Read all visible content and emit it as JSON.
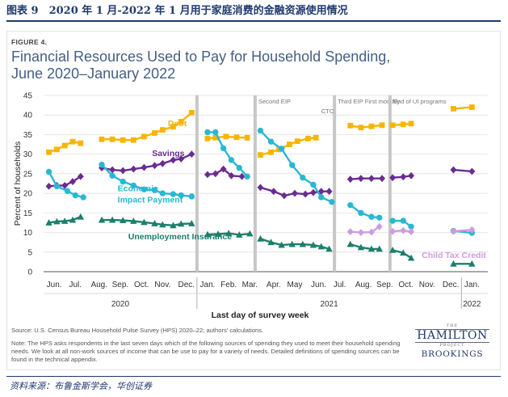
{
  "caption": "图表 9　2020 年 1 月-2022 年 1 月用于家庭消费的金融资源使用情况",
  "figure_label": "FIGURE 4.",
  "title_line1": "Financial Resources Used to Pay for Household Spending,",
  "title_line2": "June 2020–January 2022",
  "source_note": "Source: U.S. Census Bureau Household Pulse Survey (HPS) 2020–22; authors' calculations.",
  "note": "Note: The HPS asks respondents in the last seven days which of the following sources of spending they used to meet their household spending needs. We look at all non-work sources of income that can be use to pay for a variety of needs. Detailed definitions of spending sources can be found in the technical appendix.",
  "logo": {
    "the": "THE",
    "hamilton": "HAMILTON",
    "project": "PROJECT",
    "brookings": "BROOKINGS"
  },
  "footer": "资料来源：布鲁金斯学会，华创证券",
  "colors": {
    "debt": "#f7b500",
    "savings": "#6a2c91",
    "eip": "#2ab7d2",
    "ui": "#1b7f6b",
    "ctc": "#cf9be0",
    "divider": "#c7c7c7"
  },
  "chart_data": {
    "type": "line",
    "title": "Financial Resources Used to Pay for Household Spending, June 2020–January 2022",
    "xlabel": "Last day of survey week",
    "ylabel": "Percent of households",
    "ylim": [
      0,
      45
    ],
    "yticks": [
      0,
      5,
      10,
      15,
      20,
      25,
      30,
      35,
      40,
      45
    ],
    "xlim": [
      2020.42,
      2022.1
    ],
    "month_ticks": [
      {
        "label": "Jun.",
        "x": 2020.46
      },
      {
        "label": "Jul.",
        "x": 2020.54
      },
      {
        "label": "Aug.",
        "x": 2020.63
      },
      {
        "label": "Sep.",
        "x": 2020.71
      },
      {
        "label": "Oct.",
        "x": 2020.79
      },
      {
        "label": "Nov.",
        "x": 2020.87
      },
      {
        "label": "Dec.",
        "x": 2020.96
      },
      {
        "label": "Jan.",
        "x": 2021.04
      },
      {
        "label": "Feb.",
        "x": 2021.12
      },
      {
        "label": "Mar.",
        "x": 2021.2
      },
      {
        "label": "Apr.",
        "x": 2021.29
      },
      {
        "label": "May",
        "x": 2021.37
      },
      {
        "label": "Jun.",
        "x": 2021.46
      },
      {
        "label": "Jul.",
        "x": 2021.54
      },
      {
        "label": "Aug.",
        "x": 2021.63
      },
      {
        "label": "Sep.",
        "x": 2021.71
      },
      {
        "label": "Oct.",
        "x": 2021.79
      },
      {
        "label": "Nov.",
        "x": 2021.87
      },
      {
        "label": "Dec.",
        "x": 2021.96
      },
      {
        "label": "Jan.",
        "x": 2022.04
      }
    ],
    "years": [
      {
        "label": "2020",
        "x": 2020.71
      },
      {
        "label": "2021",
        "x": 2021.5
      },
      {
        "label": "2022",
        "x": 2022.04
      }
    ],
    "year_dividers": [
      2021.0,
      2022.0
    ],
    "gridlines": true,
    "phase_dividers": [
      {
        "x": 2021.0,
        "label": ""
      },
      {
        "x": 2021.22,
        "label": "Second EIP"
      },
      {
        "x": 2021.52,
        "label": "Third EIP   First monthly"
      },
      {
        "x": 2021.73,
        "label": "End of UI programs"
      }
    ],
    "extra_annotations": [
      {
        "text": "CTC",
        "x": 2021.47,
        "y": 40.5
      }
    ],
    "series": [
      {
        "name": "Debt",
        "key": "debt",
        "marker": "square",
        "label": {
          "text": "Debt",
          "x": 2020.89,
          "y": 37.2
        },
        "segments": [
          [
            [
              2020.44,
              30.5
            ],
            [
              2020.47,
              31.2
            ],
            [
              2020.5,
              32.2
            ],
            [
              2020.53,
              33.2
            ],
            [
              2020.56,
              32.8
            ]
          ],
          [
            [
              2020.64,
              33.8
            ],
            [
              2020.68,
              33.8
            ],
            [
              2020.72,
              33.6
            ],
            [
              2020.76,
              33.6
            ],
            [
              2020.8,
              34.5
            ],
            [
              2020.84,
              35.4
            ],
            [
              2020.87,
              36.2
            ],
            [
              2020.91,
              37.0
            ],
            [
              2020.94,
              38.3
            ],
            [
              2020.98,
              40.6
            ]
          ],
          [
            [
              2021.04,
              34.0
            ],
            [
              2021.07,
              34.2
            ],
            [
              2021.11,
              34.5
            ],
            [
              2021.15,
              34.3
            ],
            [
              2021.19,
              34.2
            ]
          ],
          [
            [
              2021.24,
              29.8
            ],
            [
              2021.28,
              30.5
            ],
            [
              2021.31,
              31.2
            ],
            [
              2021.35,
              32.5
            ],
            [
              2021.38,
              33.3
            ],
            [
              2021.42,
              34.0
            ],
            [
              2021.45,
              34.2
            ]
          ],
          [
            [
              2021.58,
              37.3
            ],
            [
              2021.62,
              36.8
            ],
            [
              2021.66,
              37.1
            ],
            [
              2021.7,
              37.4
            ]
          ],
          [
            [
              2021.74,
              37.4
            ],
            [
              2021.78,
              37.6
            ],
            [
              2021.81,
              37.8
            ]
          ],
          [
            [
              2021.97,
              41.6
            ],
            [
              2022.04,
              42.0
            ]
          ]
        ]
      },
      {
        "name": "Savings",
        "key": "savings",
        "marker": "diamond",
        "label": {
          "text": "Savings",
          "x": 2020.83,
          "y": 29.5
        },
        "segments": [
          [
            [
              2020.44,
              21.8
            ],
            [
              2020.47,
              22.0
            ],
            [
              2020.5,
              22.0
            ],
            [
              2020.53,
              23.0
            ],
            [
              2020.56,
              24.3
            ]
          ],
          [
            [
              2020.64,
              26.5
            ],
            [
              2020.68,
              26.0
            ],
            [
              2020.72,
              25.8
            ],
            [
              2020.76,
              26.2
            ],
            [
              2020.8,
              26.6
            ],
            [
              2020.84,
              27.1
            ],
            [
              2020.87,
              27.6
            ],
            [
              2020.91,
              28.5
            ],
            [
              2020.94,
              28.8
            ],
            [
              2020.98,
              30.0
            ]
          ],
          [
            [
              2021.04,
              24.8
            ],
            [
              2021.07,
              25.0
            ],
            [
              2021.1,
              26.2
            ],
            [
              2021.13,
              24.5
            ],
            [
              2021.17,
              24.3
            ]
          ],
          [
            [
              2021.24,
              21.5
            ],
            [
              2021.29,
              20.5
            ],
            [
              2021.33,
              19.4
            ],
            [
              2021.37,
              20.0
            ],
            [
              2021.41,
              19.8
            ],
            [
              2021.44,
              20.2
            ],
            [
              2021.47,
              20.5
            ],
            [
              2021.5,
              20.5
            ]
          ],
          [
            [
              2021.58,
              23.6
            ],
            [
              2021.62,
              23.8
            ],
            [
              2021.66,
              23.8
            ],
            [
              2021.7,
              23.8
            ]
          ],
          [
            [
              2021.74,
              24.0
            ],
            [
              2021.78,
              24.2
            ],
            [
              2021.81,
              24.5
            ]
          ],
          [
            [
              2021.97,
              26.0
            ],
            [
              2022.04,
              25.6
            ]
          ]
        ]
      },
      {
        "name": "Economic Impact Payment",
        "key": "eip",
        "marker": "circle",
        "label": {
          "text": "Economic",
          "x": 2020.7,
          "y": 20.5
        },
        "label2": {
          "text": "Impact Payment",
          "x": 2020.7,
          "y": 17.6
        },
        "segments": [
          [
            [
              2020.44,
              25.5
            ],
            [
              2020.47,
              21.8
            ],
            [
              2020.51,
              20.6
            ],
            [
              2020.54,
              19.5
            ],
            [
              2020.57,
              19.0
            ]
          ],
          [
            [
              2020.64,
              27.3
            ],
            [
              2020.68,
              24.5
            ],
            [
              2020.72,
              23.0
            ],
            [
              2020.76,
              22.0
            ],
            [
              2020.8,
              21.0
            ],
            [
              2020.84,
              20.8
            ],
            [
              2020.87,
              20.0
            ],
            [
              2020.91,
              19.8
            ],
            [
              2020.94,
              19.5
            ],
            [
              2020.98,
              19.2
            ]
          ],
          [
            [
              2021.04,
              35.6
            ],
            [
              2021.07,
              35.6
            ],
            [
              2021.1,
              31.5
            ],
            [
              2021.13,
              28.5
            ],
            [
              2021.16,
              26.5
            ],
            [
              2021.19,
              24.3
            ]
          ],
          [
            [
              2021.24,
              36.0
            ],
            [
              2021.28,
              33.2
            ],
            [
              2021.32,
              31.4
            ],
            [
              2021.36,
              27.2
            ],
            [
              2021.4,
              24.0
            ],
            [
              2021.44,
              22.2
            ],
            [
              2021.47,
              19.0
            ],
            [
              2021.51,
              17.8
            ]
          ],
          [
            [
              2021.58,
              17.0
            ],
            [
              2021.62,
              15.0
            ],
            [
              2021.66,
              14.0
            ],
            [
              2021.69,
              13.8
            ]
          ],
          [
            [
              2021.74,
              13.0
            ],
            [
              2021.78,
              13.0
            ],
            [
              2021.81,
              11.5
            ]
          ],
          [
            [
              2021.97,
              10.4
            ],
            [
              2022.04,
              9.9
            ]
          ]
        ]
      },
      {
        "name": "Unemployment Insurance",
        "key": "ui",
        "marker": "triangle",
        "label": {
          "text": "Unemployment Insurance",
          "x": 2020.74,
          "y": 8.3
        },
        "segments": [
          [
            [
              2020.44,
              12.5
            ],
            [
              2020.47,
              12.8
            ],
            [
              2020.5,
              12.9
            ],
            [
              2020.53,
              13.2
            ],
            [
              2020.56,
              14.0
            ]
          ],
          [
            [
              2020.64,
              13.2
            ],
            [
              2020.68,
              13.2
            ],
            [
              2020.72,
              13.1
            ],
            [
              2020.76,
              12.9
            ],
            [
              2020.8,
              12.6
            ],
            [
              2020.84,
              12.3
            ],
            [
              2020.87,
              12.0
            ],
            [
              2020.91,
              11.8
            ],
            [
              2020.94,
              12.2
            ],
            [
              2020.98,
              12.3
            ]
          ],
          [
            [
              2021.04,
              9.5
            ],
            [
              2021.08,
              9.6
            ],
            [
              2021.12,
              9.8
            ],
            [
              2021.16,
              9.4
            ],
            [
              2021.2,
              9.7
            ]
          ],
          [
            [
              2021.24,
              8.4
            ],
            [
              2021.28,
              7.5
            ],
            [
              2021.32,
              6.8
            ],
            [
              2021.36,
              7.0
            ],
            [
              2021.4,
              7.0
            ],
            [
              2021.44,
              6.8
            ],
            [
              2021.47,
              6.4
            ],
            [
              2021.5,
              5.8
            ]
          ],
          [
            [
              2021.58,
              7.0
            ],
            [
              2021.62,
              6.2
            ],
            [
              2021.66,
              5.8
            ],
            [
              2021.69,
              5.8
            ]
          ],
          [
            [
              2021.74,
              5.5
            ],
            [
              2021.78,
              4.8
            ],
            [
              2021.81,
              3.5
            ]
          ],
          [
            [
              2021.97,
              2.0
            ],
            [
              2022.04,
              2.0
            ]
          ]
        ]
      },
      {
        "name": "Child Tax Credit",
        "key": "ctc",
        "marker": "diamond",
        "label": {
          "text": "Child Tax Credit",
          "x": 2021.85,
          "y": 3.5
        },
        "segments": [
          [
            [
              2021.58,
              10.2
            ],
            [
              2021.62,
              10.0
            ],
            [
              2021.66,
              10.1
            ],
            [
              2021.69,
              11.5
            ]
          ],
          [
            [
              2021.74,
              10.3
            ],
            [
              2021.78,
              10.5
            ],
            [
              2021.81,
              10.2
            ]
          ],
          [
            [
              2021.97,
              10.3
            ],
            [
              2022.04,
              10.7
            ]
          ]
        ]
      }
    ]
  }
}
